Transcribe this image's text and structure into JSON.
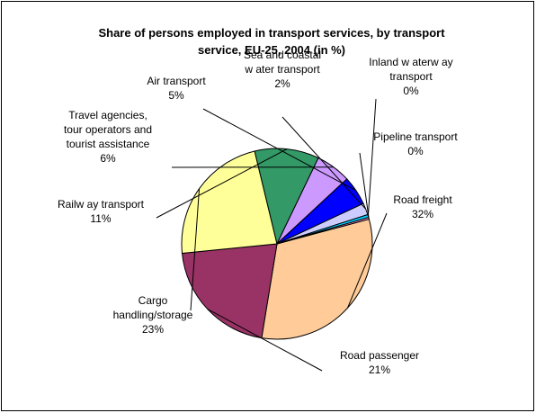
{
  "chart_data": {
    "type": "pie",
    "title_lines": [
      "Share of persons employed in transport services, by transport",
      "service, EU-25, 2004 (in %)"
    ],
    "slices": [
      {
        "name": "Road freight",
        "label_lines": [
          "Road freight"
        ],
        "value": 32,
        "value_label": "32%",
        "color": "#FFCC99"
      },
      {
        "name": "Road passenger",
        "label_lines": [
          "Road passenger"
        ],
        "value": 21,
        "value_label": "21%",
        "color": "#993366"
      },
      {
        "name": "Cargo handling/storage",
        "label_lines": [
          "Cargo",
          "handling/storage"
        ],
        "value": 23,
        "value_label": "23%",
        "color": "#FFFF99"
      },
      {
        "name": "Railway transport",
        "label_lines": [
          "Railw ay transport"
        ],
        "value": 11,
        "value_label": "11%",
        "color": "#339966"
      },
      {
        "name": "Travel agencies, tour operators and tourist assistance",
        "label_lines": [
          "Travel agencies,",
          "tour operators and",
          "tourist assistance"
        ],
        "value": 6,
        "value_label": "6%",
        "color": "#CC99FF"
      },
      {
        "name": "Air transport",
        "label_lines": [
          "Air transport"
        ],
        "value": 5,
        "value_label": "5%",
        "color": "#0000FF"
      },
      {
        "name": "Sea and coastal water transport",
        "label_lines": [
          "Sea and coastal",
          "w ater transport"
        ],
        "value": 2,
        "value_label": "2%",
        "color": "#CCCCFF"
      },
      {
        "name": "Inland waterway transport",
        "label_lines": [
          "Inland w aterw ay",
          "transport"
        ],
        "value": 0.5,
        "value_label": "0%",
        "color": "#00CCFF"
      },
      {
        "name": "Pipeline transport",
        "label_lines": [
          "Pipeline transport"
        ],
        "value": 0.3,
        "value_label": "0%",
        "color": "#FF99CC"
      }
    ]
  }
}
